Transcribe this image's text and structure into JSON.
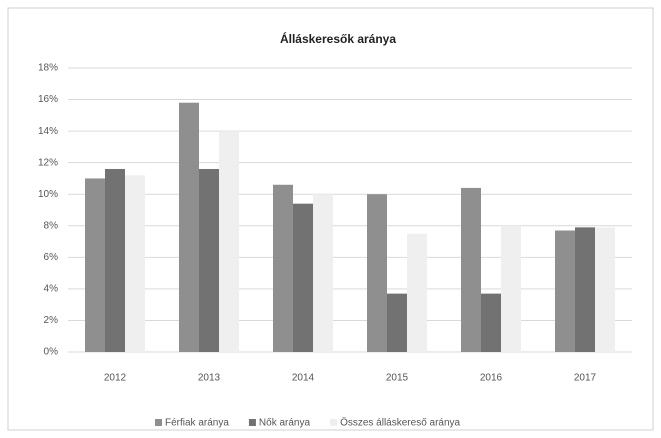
{
  "chart_data": {
    "type": "bar",
    "title": "Álláskeresők aránya",
    "categories": [
      "2012",
      "2013",
      "2014",
      "2015",
      "2016",
      "2017"
    ],
    "series": [
      {
        "name": "Férfiak aránya",
        "color": "#8f8f8f",
        "values": [
          11,
          15.8,
          10.6,
          10,
          10.4,
          7.7
        ]
      },
      {
        "name": "Nők aránya",
        "color": "#727272",
        "values": [
          11.6,
          11.6,
          9.4,
          3.7,
          3.7,
          7.9
        ]
      },
      {
        "name": "Összes álláskereső aránya",
        "color": "#efefef",
        "values": [
          11.2,
          14,
          10,
          7.5,
          8,
          7.9
        ]
      }
    ],
    "ylim": [
      0,
      18
    ],
    "yticks": [
      {
        "value": 0,
        "label": "0%"
      },
      {
        "value": 2,
        "label": "2%"
      },
      {
        "value": 4,
        "label": "4%"
      },
      {
        "value": 6,
        "label": "6%"
      },
      {
        "value": 8,
        "label": "8%"
      },
      {
        "value": 10,
        "label": "10%"
      },
      {
        "value": 12,
        "label": "12%"
      },
      {
        "value": 14,
        "label": "14%"
      },
      {
        "value": 16,
        "label": "16%"
      },
      {
        "value": 18,
        "label": "18%"
      }
    ],
    "grid": true,
    "legend": "bottom"
  }
}
